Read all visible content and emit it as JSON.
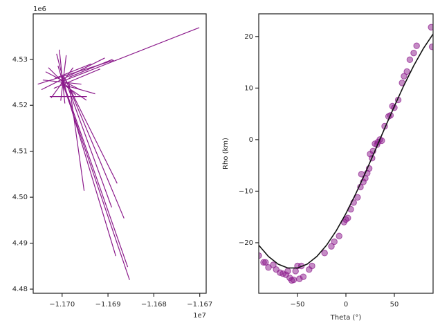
{
  "chart_data": [
    {
      "type": "segment",
      "color": "#8b1a8b",
      "x_offset_label": "1e7",
      "y_offset_label": "1e6",
      "xlim": [
        -1.17063,
        -1.16686
      ],
      "ylim": [
        4.4791,
        4.5399
      ],
      "xticks": [
        {
          "value": -1.17,
          "label": "−1.170"
        },
        {
          "value": -1.169,
          "label": "−1.169"
        },
        {
          "value": -1.168,
          "label": "−1.168"
        },
        {
          "value": -1.167,
          "label": "−1.167"
        }
      ],
      "yticks": [
        4.48,
        4.49,
        {
          "value": 4.5,
          "label": "4.50"
        },
        4.51,
        4.52,
        4.53
      ],
      "segments": [
        {
          "x": [
            -1.17,
            -1.16701
          ],
          "y": [
            4.5252,
            4.5369
          ]
        },
        {
          "x": [
            -1.17,
            -1.16853
          ],
          "y": [
            4.5252,
            4.482
          ]
        },
        {
          "x": [
            -1.17,
            -1.16857
          ],
          "y": [
            4.5256,
            4.4848
          ]
        },
        {
          "x": [
            -1.16997,
            -1.16883
          ],
          "y": [
            4.5249,
            4.4872
          ]
        },
        {
          "x": [
            -1.16992,
            -1.16865
          ],
          "y": [
            4.5256,
            4.4954
          ]
        },
        {
          "x": [
            -1.16997,
            -1.1688
          ],
          "y": [
            4.5264,
            4.503
          ]
        },
        {
          "x": [
            -1.16985,
            -1.16952
          ],
          "y": [
            4.5249,
            4.5014
          ]
        },
        {
          "x": [
            -1.16988,
            -1.16892
          ],
          "y": [
            4.5241,
            4.4978
          ]
        },
        {
          "x": [
            -1.17045,
            -1.16907
          ],
          "y": [
            4.5234,
            4.5303
          ]
        },
        {
          "x": [
            -1.1703,
            -1.1697
          ],
          "y": [
            4.5282,
            4.5222
          ]
        },
        {
          "x": [
            -1.17006,
            -1.16994
          ],
          "y": [
            4.5321,
            4.5204
          ]
        },
        {
          "x": [
            -1.17053,
            -1.16887
          ],
          "y": [
            4.5246,
            4.5298
          ]
        },
        {
          "x": [
            -1.17027,
            -1.16946
          ],
          "y": [
            4.5219,
            4.5219
          ]
        },
        {
          "x": [
            -1.16992,
            -1.16928
          ],
          "y": [
            4.5243,
            4.5225
          ]
        },
        {
          "x": [
            -1.16985,
            -1.1689
          ],
          "y": [
            4.5261,
            4.53
          ]
        },
        {
          "x": [
            -1.17015,
            -1.16937
          ],
          "y": [
            4.5259,
            4.529
          ]
        },
        {
          "x": [
            -1.17042,
            -1.16958
          ],
          "y": [
            4.5255,
            4.5246
          ]
        },
        {
          "x": [
            -1.17024,
            -1.16976
          ],
          "y": [
            4.5216,
            4.5282
          ]
        },
        {
          "x": [
            -1.17012,
            -1.16985
          ],
          "y": [
            4.5312,
            4.5207
          ]
        },
        {
          "x": [
            -1.17036,
            -1.16961
          ],
          "y": [
            4.5273,
            4.5234
          ]
        },
        {
          "x": [
            -1.16991,
            -1.17003
          ],
          "y": [
            4.5309,
            4.521
          ]
        },
        {
          "x": [
            -1.17018,
            -1.16917
          ],
          "y": [
            4.5237,
            4.5279
          ]
        },
        {
          "x": [
            -1.17003,
            -1.16947
          ],
          "y": [
            4.5249,
            4.5211
          ]
        },
        {
          "x": [
            -1.17009,
            -1.16991
          ],
          "y": [
            4.5286,
            4.5226
          ]
        }
      ]
    },
    {
      "type": "scatter",
      "xlabel": "Theta (°)",
      "ylabel": "Rho (km)",
      "xlim": [
        -90,
        90
      ],
      "ylim": [
        -29.8,
        24.4
      ],
      "xticks": [
        {
          "value": -50,
          "label": "−50"
        },
        0,
        50
      ],
      "yticks": [
        {
          "value": -20,
          "label": "−20"
        },
        {
          "value": -10,
          "label": "−10"
        },
        0,
        10,
        20
      ],
      "series": [
        {
          "type": "scatter",
          "color": "#8b1a8b",
          "x": [
            -90,
            -85,
            -83,
            -80,
            -75,
            -72,
            -68,
            -65,
            -62,
            -60,
            -58,
            -56,
            -54,
            -52,
            -50,
            -48,
            -46,
            -44,
            -38,
            -35,
            -22,
            -15,
            -12,
            -7,
            -2,
            0,
            2,
            5,
            8,
            12,
            15,
            16,
            18,
            20,
            22,
            24,
            25,
            27,
            28,
            30,
            32,
            33,
            35,
            37,
            40,
            44,
            46,
            48,
            50,
            54,
            58,
            60,
            63,
            66,
            70,
            73,
            88,
            89
          ],
          "y": [
            -22.5,
            -23.8,
            -23.8,
            -24.8,
            -24.3,
            -25.2,
            -25.8,
            -26,
            -26.2,
            -25.5,
            -26.8,
            -27.3,
            -27.2,
            -25.5,
            -24.5,
            -27,
            -24.5,
            -26.6,
            -25.2,
            -24.5,
            -22,
            -20.7,
            -19.8,
            -18.7,
            -16,
            -15.5,
            -15.2,
            -13.5,
            -12.2,
            -11.2,
            -9.2,
            -6.7,
            -8.2,
            -7.5,
            -6.5,
            -5.6,
            -2.8,
            -3.6,
            -2.2,
            -0.8,
            -1,
            -0.5,
            0,
            -0.2,
            2.6,
            4.5,
            4.7,
            6.5,
            6.2,
            7.7,
            11,
            12.3,
            13.2,
            15.5,
            16.8,
            18.2,
            21.8,
            18
          ]
        },
        {
          "type": "line",
          "color": "#111111",
          "x": [
            -90,
            -80,
            -70,
            -60,
            -50,
            -40,
            -30,
            -20,
            -10,
            0,
            10,
            20,
            30,
            40,
            50,
            60,
            70,
            80,
            90
          ],
          "y": [
            -20.48,
            -22.66,
            -24.15,
            -24.9,
            -24.9,
            -24.15,
            -22.66,
            -20.48,
            -17.68,
            -14.34,
            -10.57,
            -6.47,
            -2.18,
            2.18,
            6.47,
            10.57,
            14.34,
            17.68,
            20.48
          ]
        }
      ]
    }
  ]
}
